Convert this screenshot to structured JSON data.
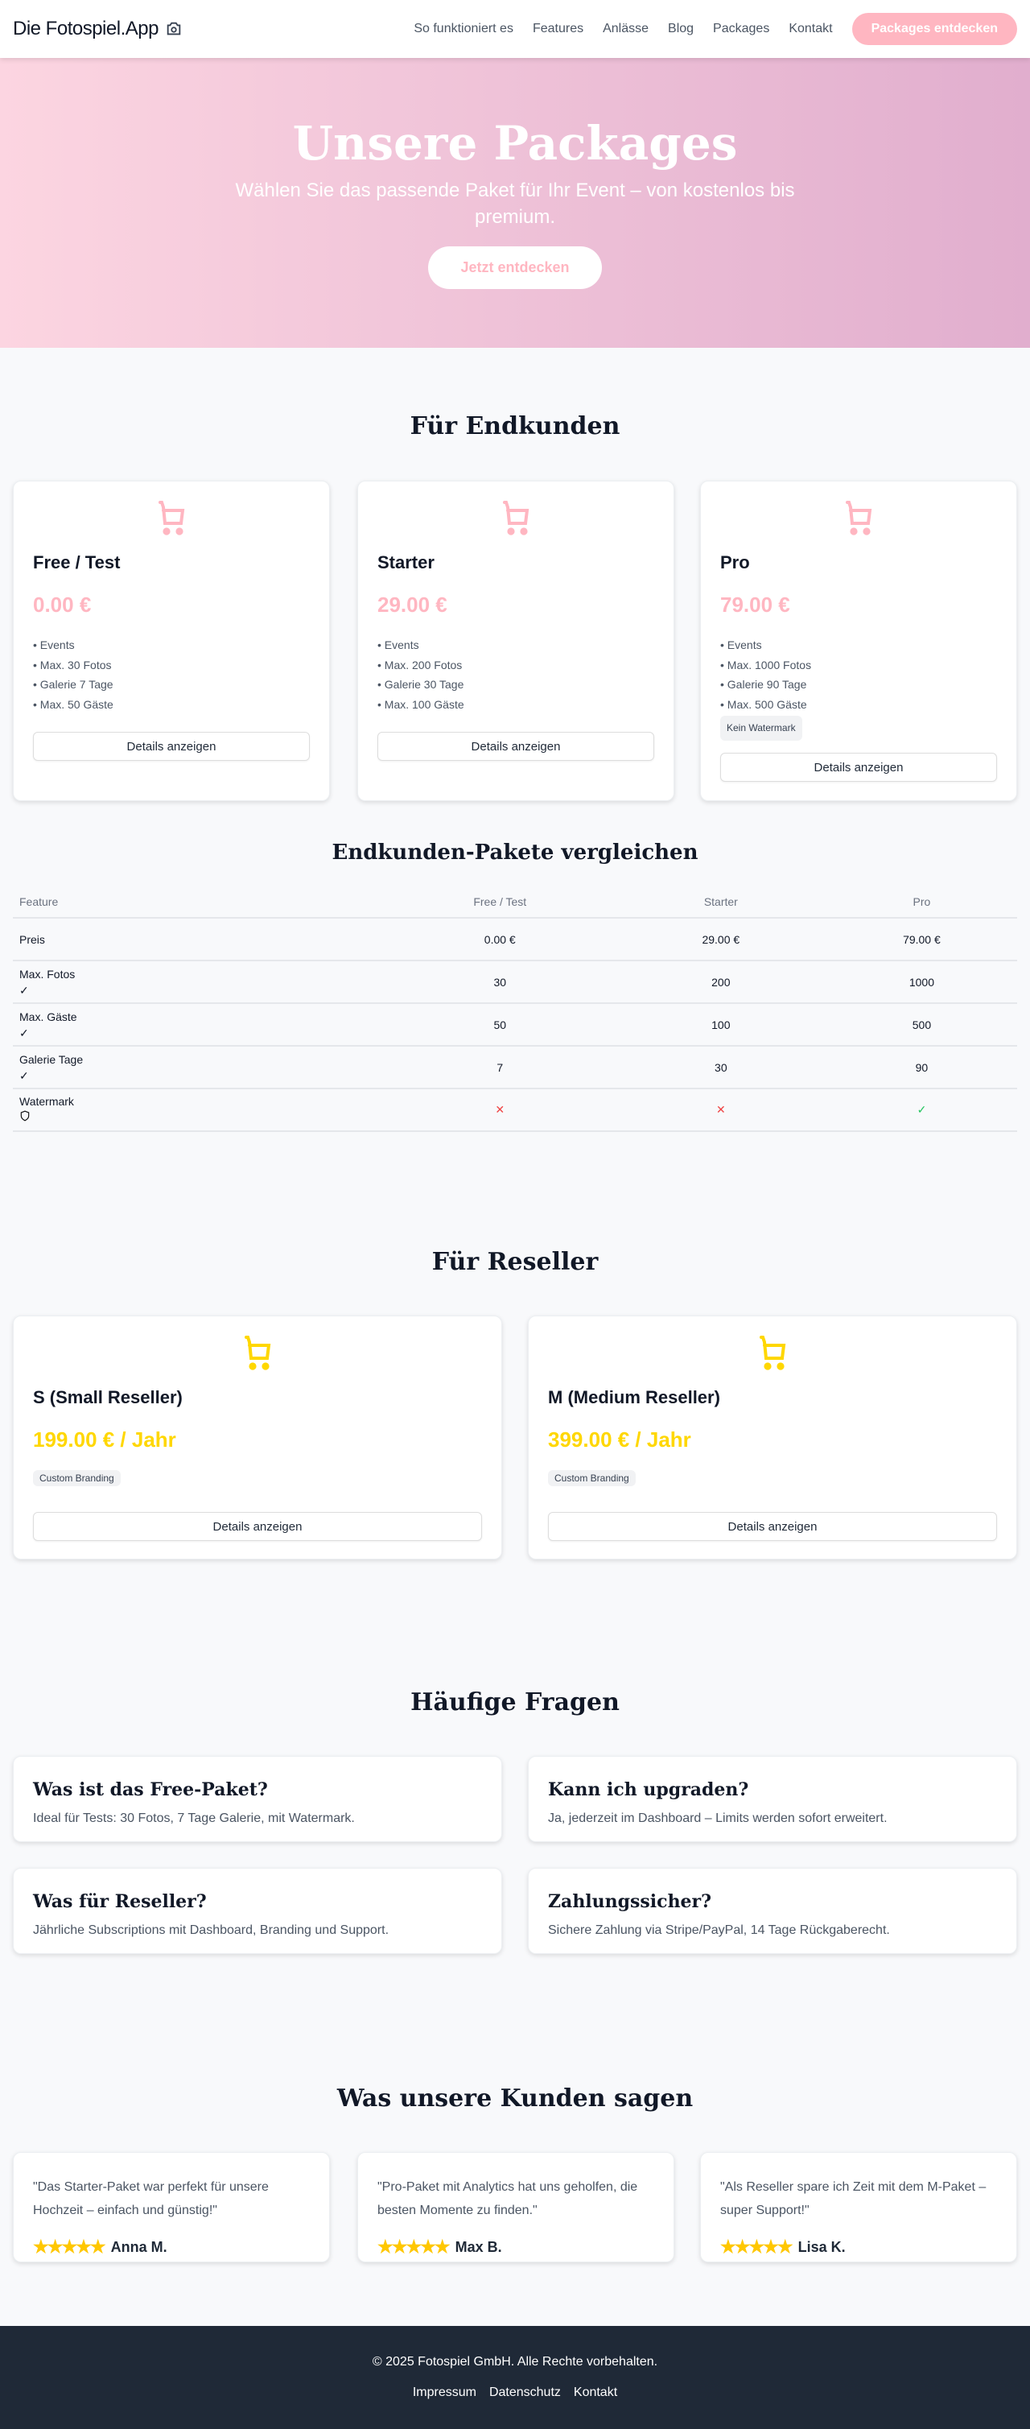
{
  "nav": {
    "logo": "Die Fotospiel.App",
    "links": [
      "So funktioniert es",
      "Features",
      "Anlässe",
      "Blog",
      "Packages",
      "Kontakt"
    ],
    "cta": "Packages entdecken"
  },
  "hero": {
    "title": "Unsere Packages",
    "subtitle": "Wählen Sie das passende Paket für Ihr Event – von kostenlos bis premium.",
    "cta": "Jetzt entdecken"
  },
  "colors": {
    "accent": "#ffb6c1",
    "reseller": "#ffd700",
    "footer": "#1f2937"
  },
  "endkunden": {
    "heading": "Für Endkunden",
    "packages": [
      {
        "name": "Free / Test",
        "price": "0.00 €",
        "features": [
          "• Events",
          "• Max. 30 Fotos",
          "• Galerie 7 Tage",
          "• Max. 50 Gäste"
        ],
        "button": "Details anzeigen"
      },
      {
        "name": "Starter",
        "price": "29.00 €",
        "features": [
          "• Events",
          "• Max. 200 Fotos",
          "• Galerie 30 Tage",
          "• Max. 100 Gäste"
        ],
        "button": "Details anzeigen"
      },
      {
        "name": "Pro",
        "price": "79.00 €",
        "features": [
          "• Events",
          "• Max. 1000 Fotos",
          "• Galerie 90 Tage",
          "• Max. 500 Gäste"
        ],
        "badge": "Kein Watermark",
        "button": "Details anzeigen"
      }
    ]
  },
  "compare": {
    "heading": "Endkunden-Pakete vergleichen",
    "headers": [
      "Feature",
      "Free / Test",
      "Starter",
      "Pro"
    ],
    "rows": [
      {
        "label": "Preis",
        "values": [
          "0.00 €",
          "29.00 €",
          "79.00 €"
        ]
      },
      {
        "label": "Max. Fotos",
        "icon": "✓",
        "values": [
          "30",
          "200",
          "1000"
        ]
      },
      {
        "label": "Max. Gäste",
        "icon": "✓",
        "values": [
          "50",
          "100",
          "500"
        ]
      },
      {
        "label": "Galerie Tage",
        "icon": "✓",
        "values": [
          "7",
          "30",
          "90"
        ]
      },
      {
        "label": "Watermark",
        "icon": "shield",
        "values": [
          "✕",
          "✕",
          "✓"
        ]
      }
    ]
  },
  "reseller": {
    "heading": "Für Reseller",
    "packages": [
      {
        "name": "S (Small Reseller)",
        "price": "199.00 € / Jahr",
        "badge": "Custom Branding",
        "button": "Details anzeigen"
      },
      {
        "name": "M (Medium Reseller)",
        "price": "399.00 € / Jahr",
        "badge": "Custom Branding",
        "button": "Details anzeigen"
      }
    ]
  },
  "faq": {
    "heading": "Häufige Fragen",
    "items": [
      {
        "q": "Was ist das Free-Paket?",
        "a": "Ideal für Tests: 30 Fotos, 7 Tage Galerie, mit Watermark."
      },
      {
        "q": "Kann ich upgraden?",
        "a": "Ja, jederzeit im Dashboard – Limits werden sofort erweitert."
      },
      {
        "q": "Was für Reseller?",
        "a": "Jährliche Subscriptions mit Dashboard, Branding und Support."
      },
      {
        "q": "Zahlungssicher?",
        "a": "Sichere Zahlung via Stripe/PayPal, 14 Tage Rückgaberecht."
      }
    ]
  },
  "testimonials": {
    "heading": "Was unsere Kunden sagen",
    "items": [
      {
        "quote": "\"Das Starter-Paket war perfekt für unsere Hochzeit – einfach und günstig!\"",
        "name": "Anna M.",
        "stars": "★★★★★",
        "rating": 5
      },
      {
        "quote": "\"Pro-Paket mit Analytics hat uns geholfen, die besten Momente zu finden.\"",
        "name": "Max B.",
        "stars": "★★★★★",
        "rating": 5
      },
      {
        "quote": "\"Als Reseller spare ich Zeit mit dem M-Paket – super Support!\"",
        "name": "Lisa K.",
        "stars": "★★★★★",
        "rating": 5
      }
    ]
  },
  "footer": {
    "copyright": "© 2025 Fotospiel GmbH. Alle Rechte vorbehalten.",
    "links": [
      "Impressum",
      "Datenschutz",
      "Kontakt"
    ]
  }
}
